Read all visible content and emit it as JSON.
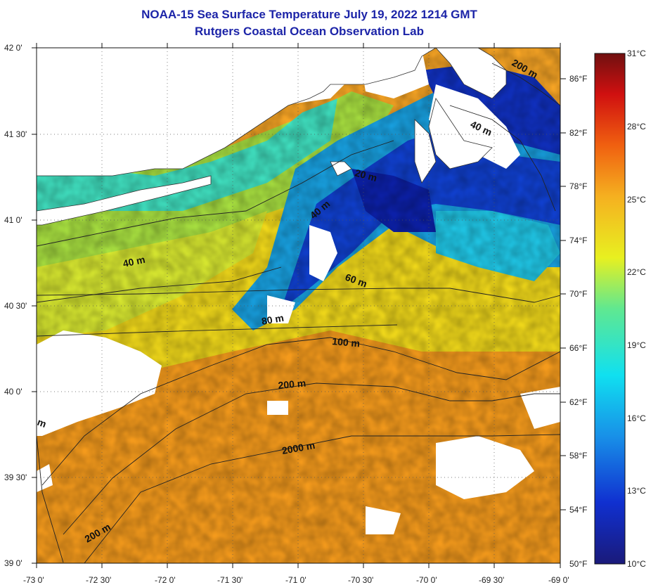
{
  "title": "NOAA-15 Sea Surface Temperature July 19, 2022 1214 GMT",
  "subtitle": "Rutgers Coastal Ocean Observation Lab",
  "lat_labels": [
    "42 0'",
    "41 30'",
    "41 0'",
    "40 30'",
    "40 0'",
    "39 30'",
    "39 0'"
  ],
  "lon_labels": [
    "-73 0'",
    "-72 30'",
    "-72 0'",
    "-71 30'",
    "-71 0'",
    "-70 30'",
    "-70 0'",
    "-69 30'",
    "-69 0'"
  ],
  "colorbar_f": [
    "86°F",
    "82°F",
    "78°F",
    "74°F",
    "70°F",
    "66°F",
    "62°F",
    "58°F",
    "54°F",
    "50°F"
  ],
  "colorbar_c": [
    "31°C",
    "28°C",
    "25°C",
    "22°C",
    "19°C",
    "16°C",
    "13°C",
    "10°C"
  ],
  "contour_labels": [
    "200 m",
    "40 m",
    "20 m",
    "40 m",
    "40 m",
    "60 m",
    "80 m",
    "100 m",
    "200 m",
    "2000 m",
    "200 m",
    "m"
  ],
  "colors": {
    "title": "#1c24a8",
    "land": "#ffffff",
    "cloud": "#ffffff",
    "warm": "#f5a020",
    "cold": "#1030c8"
  }
}
